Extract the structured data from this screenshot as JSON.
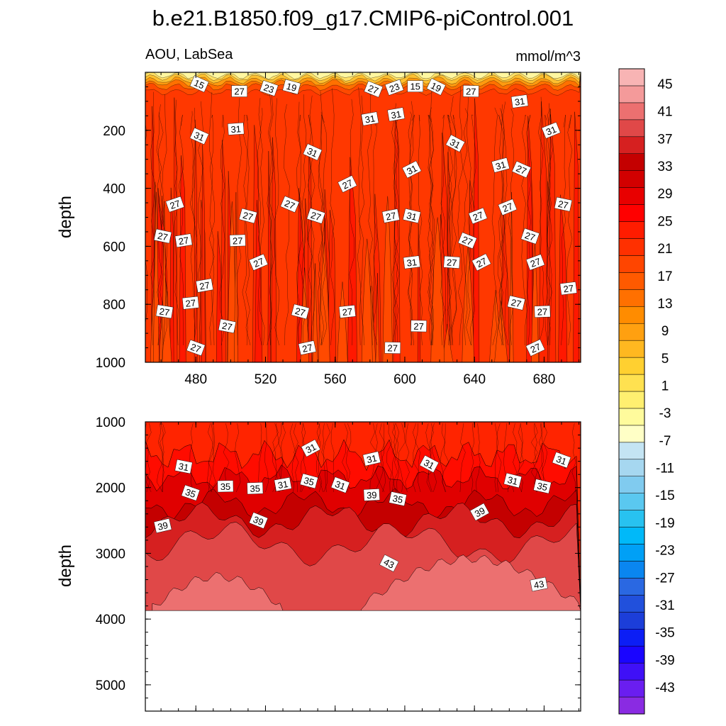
{
  "title": "b.e21.B1850.f09_g17.CMIP6-piControl.001",
  "left_string": "AOU, LabSea",
  "right_string": "mmol/m^3",
  "colors": {
    "levels_low_to_high": [
      "#8a2be2",
      "#6a1ef0",
      "#3f10f7",
      "#1a05ff",
      "#0c1ef5",
      "#1c3ed9",
      "#2150dc",
      "#2a68e2",
      "#0a86f0",
      "#00a0f6",
      "#00b9f9",
      "#28c2f0",
      "#5ac8f0",
      "#80cbef",
      "#a6d7f0",
      "#c4e4f3",
      "#ffffc6",
      "#fffb9c",
      "#ffef70",
      "#ffe150",
      "#ffd030",
      "#ffb820",
      "#ffa010",
      "#ff8c00",
      "#ff7000",
      "#ff5a00",
      "#ff4500",
      "#ff3000",
      "#ff1c00",
      "#ff0000",
      "#e80000",
      "#d20000",
      "#c40000",
      "#d62020",
      "#e04848",
      "#ec7070",
      "#f49a9a",
      "#f8b4b4"
    ]
  },
  "chart_data": [
    {
      "type": "contour",
      "panel": "upper",
      "title": "b.e21.B1850.f09_g17.CMIP6-piControl.001",
      "left_string": "AOU, LabSea",
      "right_string": "mmol/m^3",
      "xlabel": "",
      "ylabel": "depth",
      "xlim": [
        451,
        701
      ],
      "ylim": [
        1000,
        0
      ],
      "x_ticks": [
        480,
        520,
        560,
        600,
        640,
        680
      ],
      "y_ticks": [
        200,
        400,
        600,
        800,
        1000
      ],
      "contour_labels": [
        {
          "x": 482,
          "y": 40,
          "value": "15"
        },
        {
          "x": 505,
          "y": 65,
          "value": "27"
        },
        {
          "x": 522,
          "y": 55,
          "value": "23"
        },
        {
          "x": 535,
          "y": 50,
          "value": "19"
        },
        {
          "x": 582,
          "y": 58,
          "value": "27"
        },
        {
          "x": 594,
          "y": 52,
          "value": "23"
        },
        {
          "x": 606,
          "y": 48,
          "value": "15"
        },
        {
          "x": 618,
          "y": 50,
          "value": "19"
        },
        {
          "x": 638,
          "y": 65,
          "value": "27"
        },
        {
          "x": 666,
          "y": 100,
          "value": "31"
        },
        {
          "x": 482,
          "y": 220,
          "value": "31"
        },
        {
          "x": 503,
          "y": 195,
          "value": "31"
        },
        {
          "x": 580,
          "y": 160,
          "value": "31"
        },
        {
          "x": 595,
          "y": 145,
          "value": "31"
        },
        {
          "x": 629,
          "y": 245,
          "value": "31"
        },
        {
          "x": 655,
          "y": 320,
          "value": "31"
        },
        {
          "x": 684,
          "y": 200,
          "value": "31"
        },
        {
          "x": 547,
          "y": 275,
          "value": "31"
        },
        {
          "x": 604,
          "y": 335,
          "value": "31"
        },
        {
          "x": 667,
          "y": 335,
          "value": "27"
        },
        {
          "x": 567,
          "y": 385,
          "value": "27"
        },
        {
          "x": 468,
          "y": 455,
          "value": "27"
        },
        {
          "x": 534,
          "y": 455,
          "value": "27"
        },
        {
          "x": 510,
          "y": 495,
          "value": "27"
        },
        {
          "x": 549,
          "y": 495,
          "value": "27"
        },
        {
          "x": 592,
          "y": 495,
          "value": "27"
        },
        {
          "x": 604,
          "y": 495,
          "value": "31"
        },
        {
          "x": 642,
          "y": 495,
          "value": "27"
        },
        {
          "x": 659,
          "y": 465,
          "value": "27"
        },
        {
          "x": 691,
          "y": 455,
          "value": "27"
        },
        {
          "x": 461,
          "y": 565,
          "value": "27"
        },
        {
          "x": 473,
          "y": 580,
          "value": "27"
        },
        {
          "x": 504,
          "y": 580,
          "value": "27"
        },
        {
          "x": 636,
          "y": 580,
          "value": "27"
        },
        {
          "x": 672,
          "y": 565,
          "value": "27"
        },
        {
          "x": 516,
          "y": 655,
          "value": "27"
        },
        {
          "x": 604,
          "y": 655,
          "value": "31"
        },
        {
          "x": 627,
          "y": 655,
          "value": "27"
        },
        {
          "x": 644,
          "y": 655,
          "value": "27"
        },
        {
          "x": 675,
          "y": 655,
          "value": "27"
        },
        {
          "x": 694,
          "y": 745,
          "value": "27"
        },
        {
          "x": 485,
          "y": 735,
          "value": "27"
        },
        {
          "x": 462,
          "y": 825,
          "value": "27"
        },
        {
          "x": 477,
          "y": 795,
          "value": "27"
        },
        {
          "x": 540,
          "y": 825,
          "value": "27"
        },
        {
          "x": 567,
          "y": 825,
          "value": "27"
        },
        {
          "x": 664,
          "y": 795,
          "value": "27"
        },
        {
          "x": 679,
          "y": 825,
          "value": "27"
        },
        {
          "x": 498,
          "y": 875,
          "value": "27"
        },
        {
          "x": 608,
          "y": 875,
          "value": "27"
        },
        {
          "x": 480,
          "y": 950,
          "value": "27"
        },
        {
          "x": 544,
          "y": 950,
          "value": "27"
        },
        {
          "x": 593,
          "y": 950,
          "value": "27"
        },
        {
          "x": 675,
          "y": 950,
          "value": "27"
        }
      ]
    },
    {
      "type": "contour",
      "panel": "lower",
      "xlabel": "",
      "ylabel": "depth",
      "xlim": [
        451,
        701
      ],
      "ylim": [
        5400,
        1000
      ],
      "y_ticks": [
        1000,
        2000,
        3000,
        4000,
        5000
      ],
      "data_bottom_depth": 3870,
      "contour_labels": [
        {
          "x": 546,
          "y": 1400,
          "value": "31"
        },
        {
          "x": 473,
          "y": 1680,
          "value": "31"
        },
        {
          "x": 477,
          "y": 2080,
          "value": "35"
        },
        {
          "x": 497,
          "y": 1980,
          "value": "35"
        },
        {
          "x": 514,
          "y": 2010,
          "value": "35"
        },
        {
          "x": 530,
          "y": 1950,
          "value": "31"
        },
        {
          "x": 545,
          "y": 1900,
          "value": "35"
        },
        {
          "x": 563,
          "y": 1960,
          "value": "31"
        },
        {
          "x": 581,
          "y": 2110,
          "value": "39"
        },
        {
          "x": 581,
          "y": 1560,
          "value": "31"
        },
        {
          "x": 596,
          "y": 2170,
          "value": "35"
        },
        {
          "x": 614,
          "y": 1640,
          "value": "31"
        },
        {
          "x": 643,
          "y": 2370,
          "value": "39"
        },
        {
          "x": 662,
          "y": 1890,
          "value": "31"
        },
        {
          "x": 679,
          "y": 1980,
          "value": "35"
        },
        {
          "x": 690,
          "y": 1580,
          "value": "31"
        },
        {
          "x": 461,
          "y": 2580,
          "value": "39"
        },
        {
          "x": 516,
          "y": 2500,
          "value": "39"
        },
        {
          "x": 591,
          "y": 3150,
          "value": "43"
        },
        {
          "x": 677,
          "y": 3470,
          "value": "43"
        }
      ]
    },
    {
      "type": "colorbar",
      "labels": [
        "45",
        "41",
        "37",
        "33",
        "29",
        "25",
        "21",
        "17",
        "13",
        "9",
        "5",
        "1",
        "-3",
        "-7",
        "-11",
        "-15",
        "-19",
        "-23",
        "-27",
        "-31",
        "-35",
        "-39",
        "-43"
      ]
    }
  ]
}
